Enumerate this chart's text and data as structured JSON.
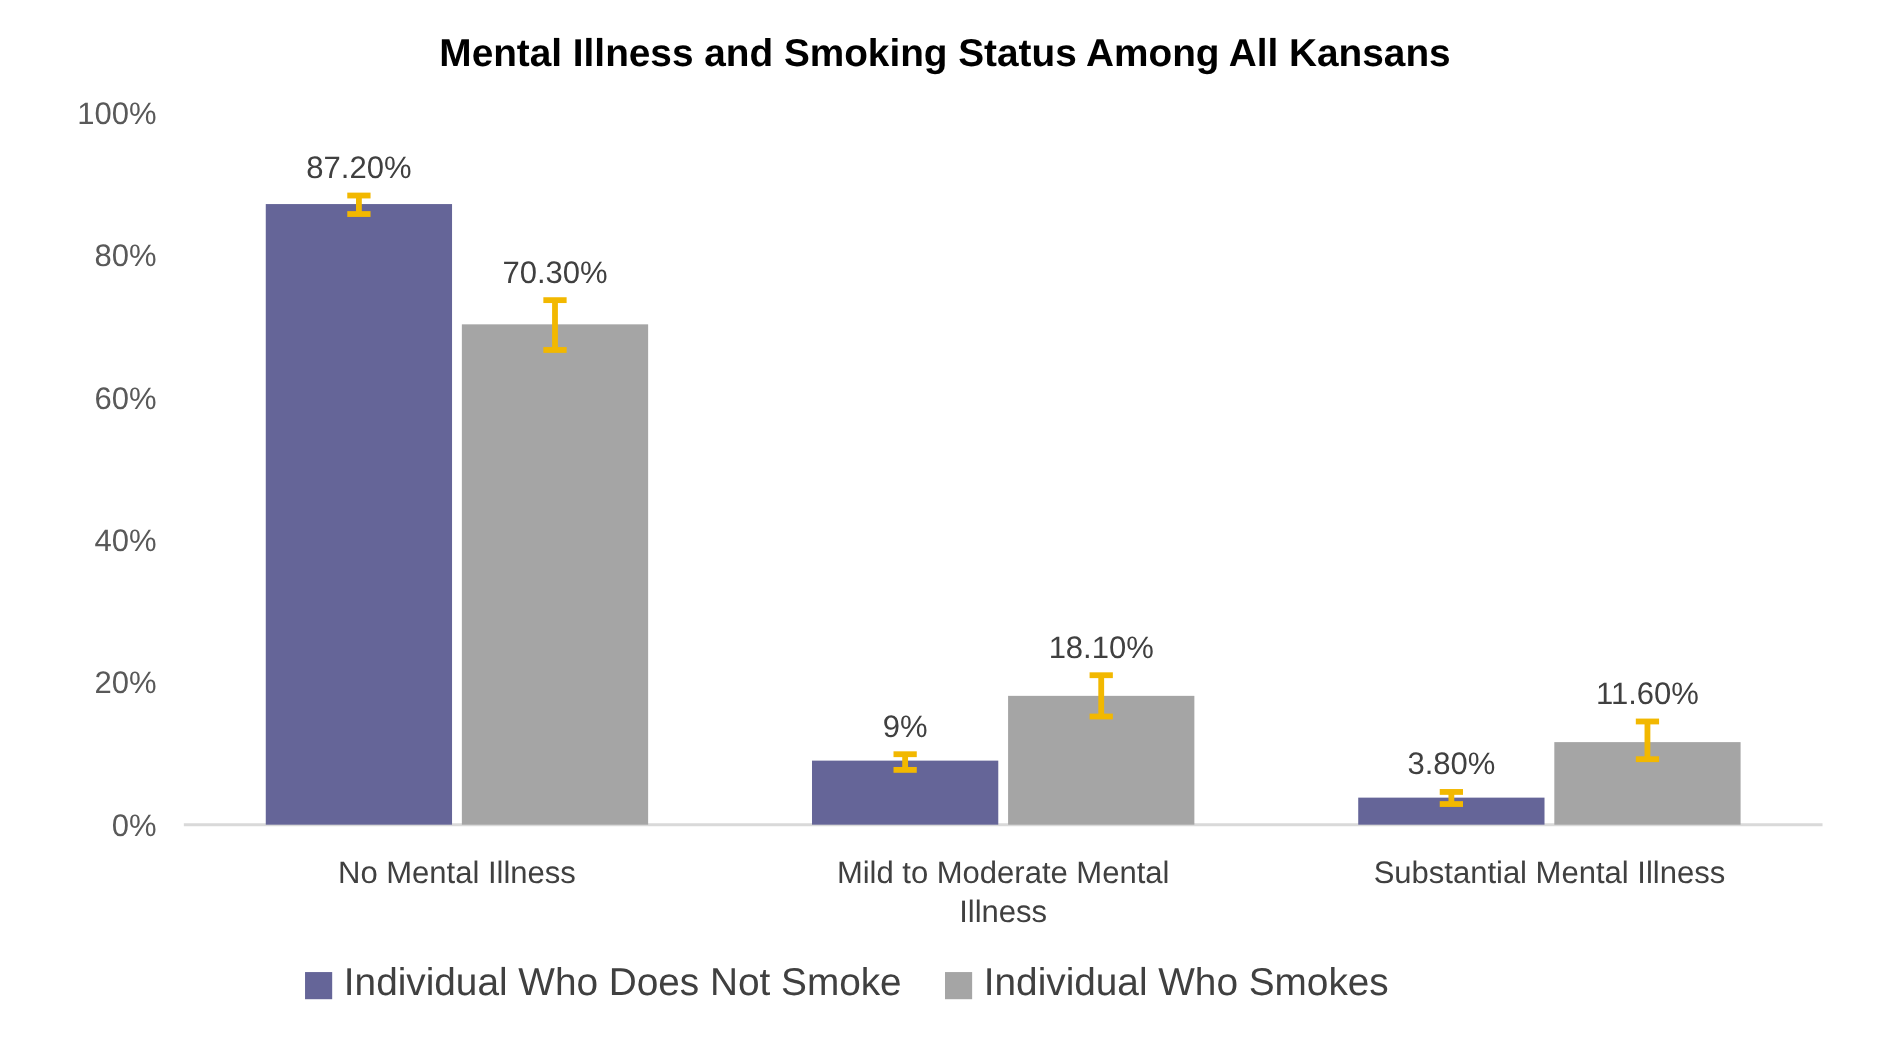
{
  "chart_data": {
    "type": "bar",
    "title": "Mental Illness and Smoking Status Among All Kansans",
    "categories": [
      "No Mental Illness",
      "Mild to Moderate Mental Illness",
      "Substantial Mental Illness"
    ],
    "series": [
      {
        "name": "Individual Who Does Not Smoke",
        "color": "#656598",
        "values": [
          87.2,
          9,
          3.8
        ],
        "value_labels": [
          "87.20%",
          "9%",
          "3.80%"
        ],
        "errors": [
          [
            85.8,
            88.4
          ],
          [
            7.7,
            9.9
          ],
          [
            2.9,
            4.6
          ]
        ]
      },
      {
        "name": "Individual Who Smokes",
        "color": "#a5a5a5",
        "values": [
          70.3,
          18.1,
          11.6
        ],
        "value_labels": [
          "70.30%",
          "18.10%",
          "11.60%"
        ],
        "errors": [
          [
            66.7,
            73.7
          ],
          [
            15.2,
            21.0
          ],
          [
            9.2,
            14.5
          ]
        ]
      }
    ],
    "ylim": [
      0,
      100
    ],
    "yticks": [
      {
        "value": 0,
        "label": "0%"
      },
      {
        "value": 20,
        "label": "20%"
      },
      {
        "value": 40,
        "label": "40%"
      },
      {
        "value": 60,
        "label": "60%"
      },
      {
        "value": 80,
        "label": "80%"
      },
      {
        "value": 100,
        "label": "100%"
      }
    ],
    "legend": "bottom"
  }
}
